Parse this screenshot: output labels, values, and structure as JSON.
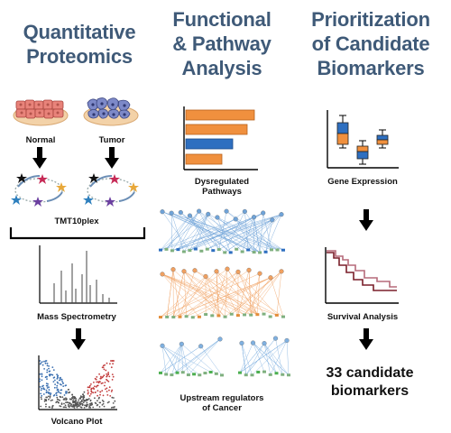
{
  "columns": {
    "proteomics": {
      "title_line1": "Quantitative",
      "title_line2": "Proteomics"
    },
    "functional": {
      "title_line1": "Functional",
      "title_line2": "& Pathway",
      "title_line3": "Analysis"
    },
    "prioritization": {
      "title_line1": "Prioritization",
      "title_line2": "of Candidate",
      "title_line3": "Biomarkers"
    }
  },
  "proteomics": {
    "normal_label": "Normal",
    "tumor_label": "Tumor",
    "labeling_label": "TMT10plex",
    "ms_label": "Mass Spectrometry",
    "volcano_label": "Volcano Plot"
  },
  "functional": {
    "pathways_label_line1": "Dysregulated",
    "pathways_label_line2": "Pathways",
    "regulators_label_line1": "Upstream regulators",
    "regulators_label_line2": "of Cancer"
  },
  "prioritization": {
    "gene_expression_label": "Gene Expression",
    "survival_label": "Survival Analysis",
    "result_line1": "33 candidate",
    "result_line2": "biomarkers"
  },
  "colors": {
    "heading": "#3f5a78",
    "orange": "#f0903e",
    "blue": "#2e6fc0",
    "tissue_normal": "#e8837a",
    "tissue_tumor": "#7d89c8",
    "tray": "#f3d2a8"
  }
}
